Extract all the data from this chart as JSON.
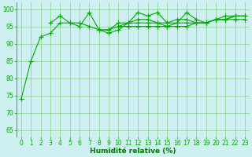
{
  "x": [
    0,
    1,
    2,
    3,
    4,
    5,
    6,
    7,
    8,
    9,
    10,
    11,
    12,
    13,
    14,
    15,
    16,
    17,
    18,
    19,
    20,
    21,
    22,
    23
  ],
  "line1": [
    74,
    85,
    92,
    93,
    96,
    96,
    95,
    99,
    94,
    93,
    94,
    96,
    96,
    96,
    96,
    95,
    96,
    99,
    97,
    96,
    97,
    97,
    98,
    98
  ],
  "line2": [
    null,
    null,
    null,
    96,
    98,
    96,
    96,
    95,
    94,
    94,
    95,
    96,
    99,
    98,
    99,
    96,
    97,
    97,
    96,
    96,
    97,
    98,
    98,
    98
  ],
  "line3": [
    null,
    null,
    null,
    null,
    null,
    null,
    null,
    null,
    94,
    94,
    96,
    96,
    97,
    97,
    96,
    96,
    96,
    96,
    96,
    96,
    97,
    97,
    98,
    98
  ],
  "line4": [
    null,
    null,
    null,
    null,
    null,
    null,
    null,
    null,
    null,
    null,
    95,
    95,
    95,
    95,
    95,
    95,
    95,
    95,
    96,
    96,
    97,
    97,
    97,
    97
  ],
  "bg_color": "#cff0f0",
  "grid_color": "#88cc88",
  "line_color": "#00aa00",
  "marker": "+",
  "xlabel": "Humidité relative (%)",
  "xlim": [
    -0.5,
    23.5
  ],
  "ylim": [
    63,
    102
  ],
  "yticks": [
    65,
    70,
    75,
    80,
    85,
    90,
    95,
    100
  ],
  "xticks": [
    0,
    1,
    2,
    3,
    4,
    5,
    6,
    7,
    8,
    9,
    10,
    11,
    12,
    13,
    14,
    15,
    16,
    17,
    18,
    19,
    20,
    21,
    22,
    23
  ],
  "xlabel_color": "#007700",
  "xlabel_fontsize": 6.5,
  "tick_fontsize": 5.5,
  "line_width": 0.8,
  "marker_size": 4
}
